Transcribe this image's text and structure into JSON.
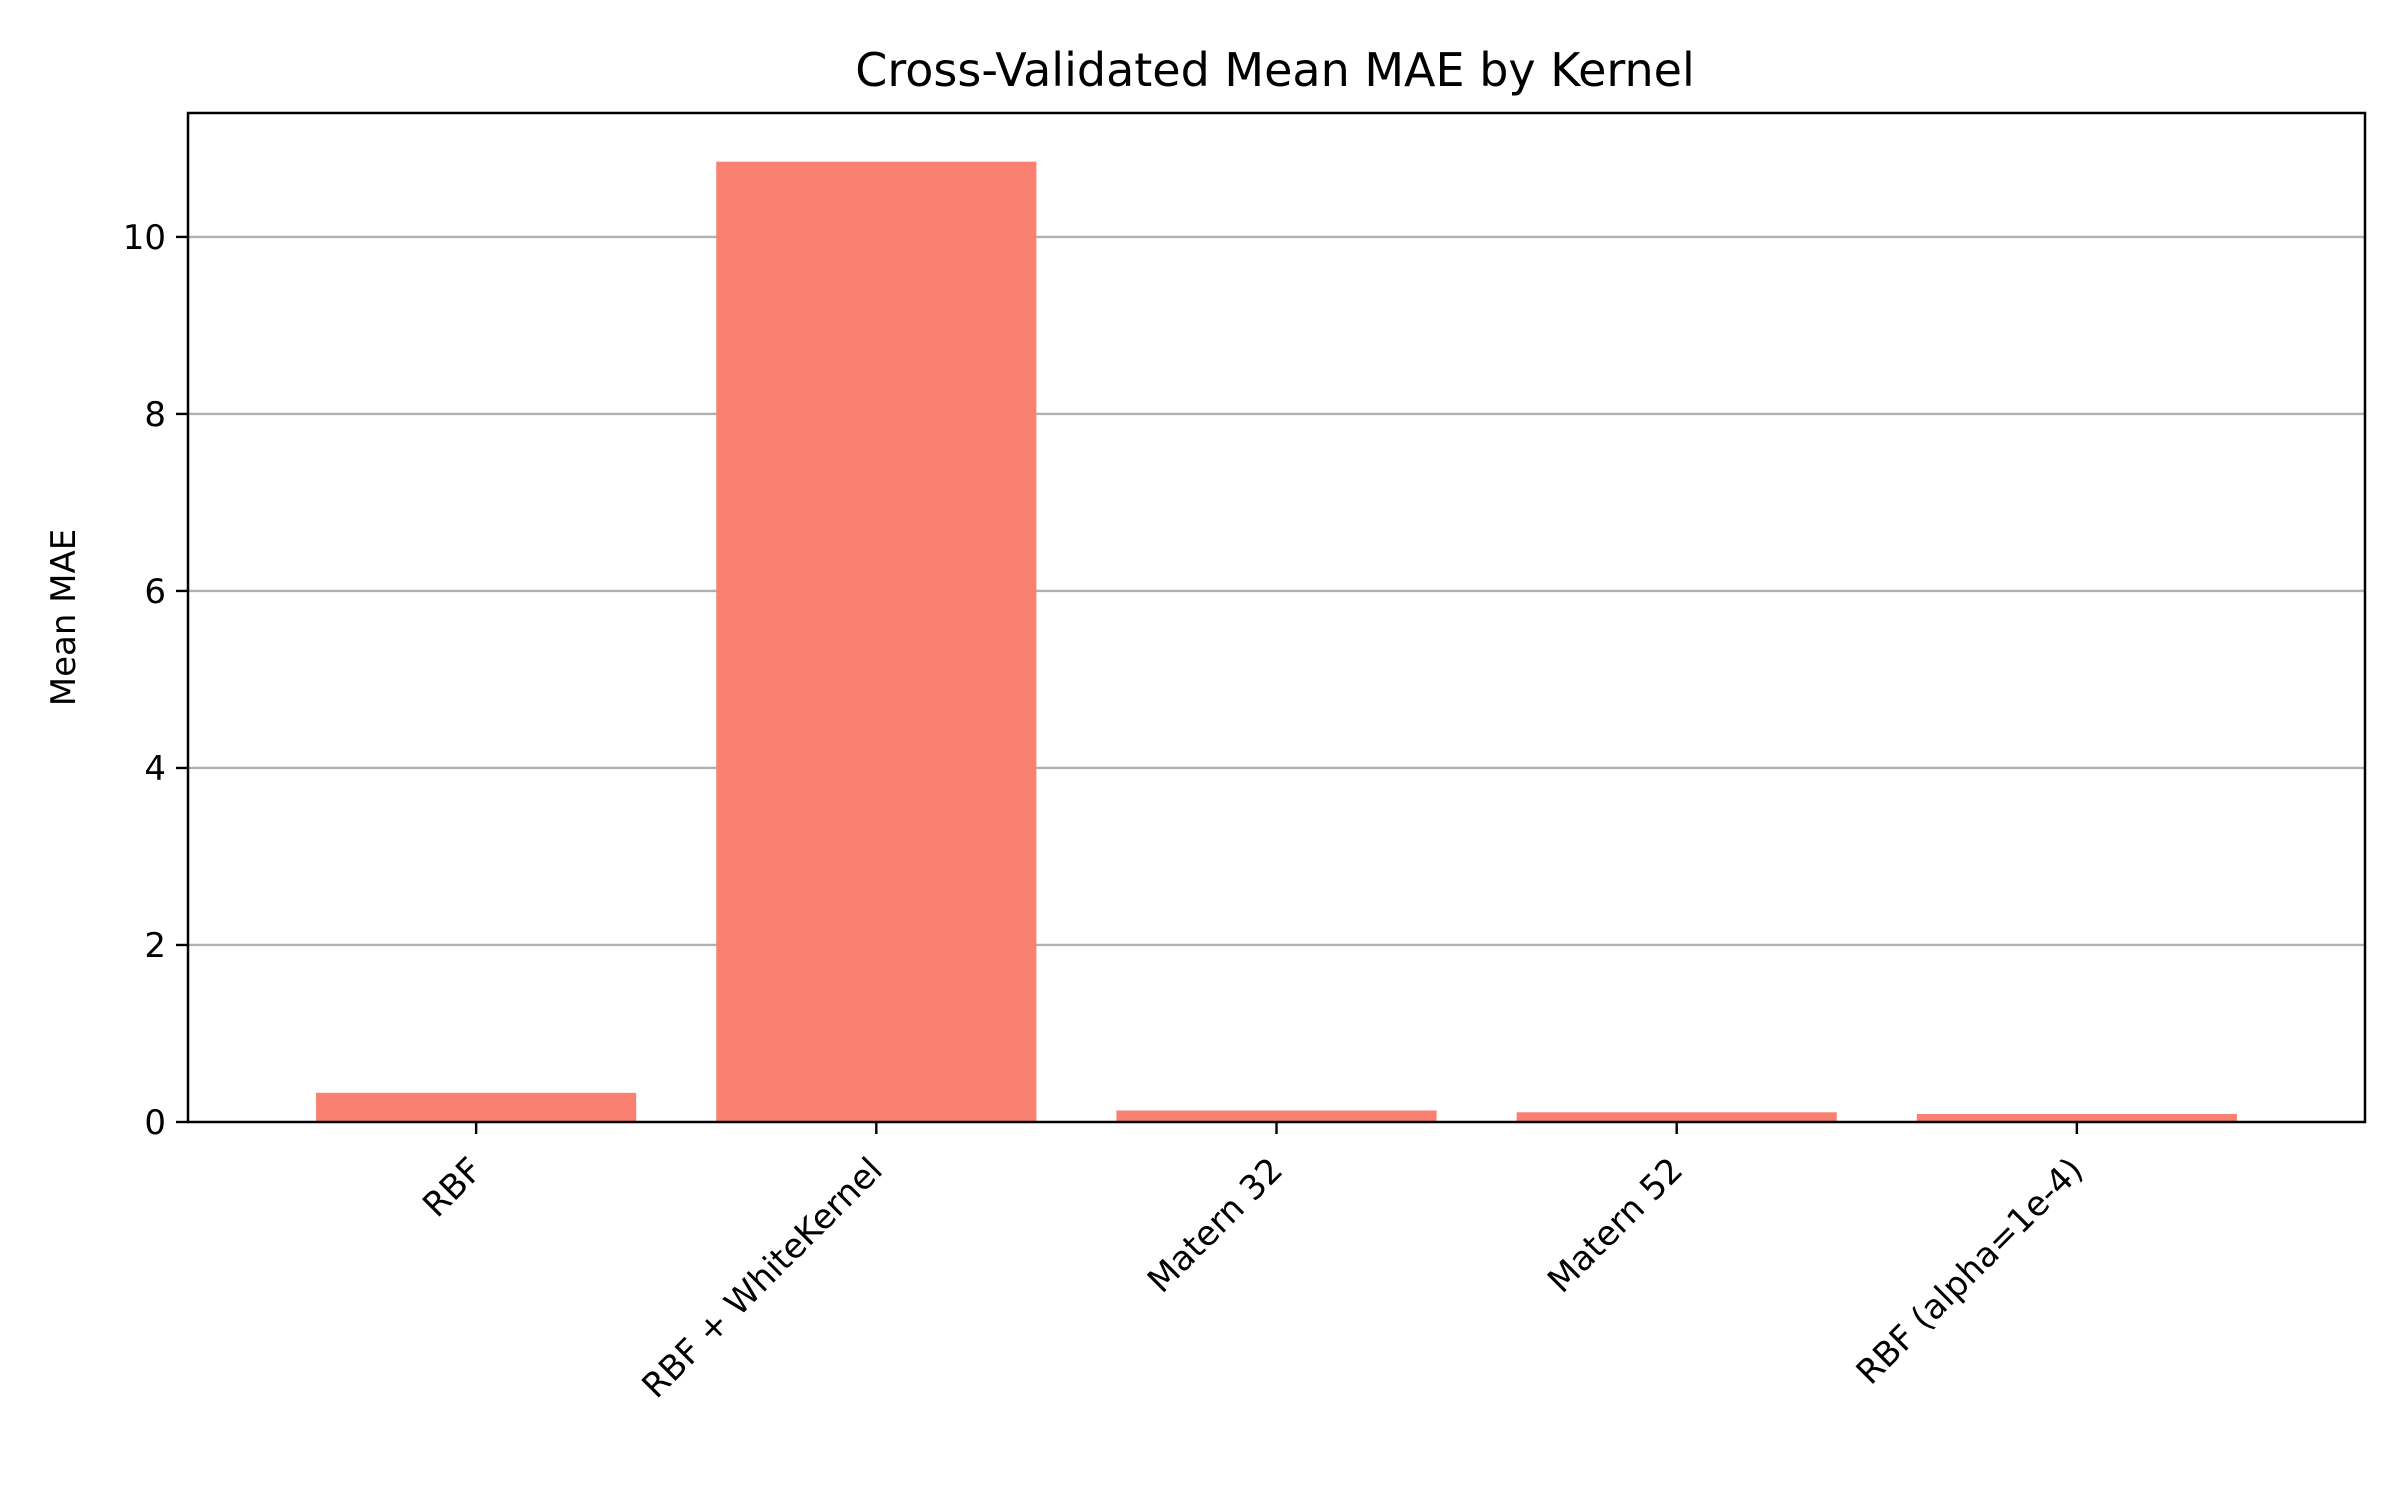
{
  "chart_data": {
    "type": "bar",
    "title": "Cross-Validated Mean MAE by Kernel",
    "xlabel": "",
    "ylabel": "Mean MAE",
    "categories": [
      "RBF",
      "RBF + WhiteKernel",
      "Matern 32",
      "Matern 52",
      "RBF (alpha=1e-4)"
    ],
    "values": [
      0.33,
      10.85,
      0.13,
      0.11,
      0.09
    ],
    "ylim": [
      0,
      11.4
    ],
    "yticks": [
      0,
      2,
      4,
      6,
      8,
      10
    ],
    "bar_color": "#fa8072",
    "grid": "y",
    "legend": "none"
  }
}
